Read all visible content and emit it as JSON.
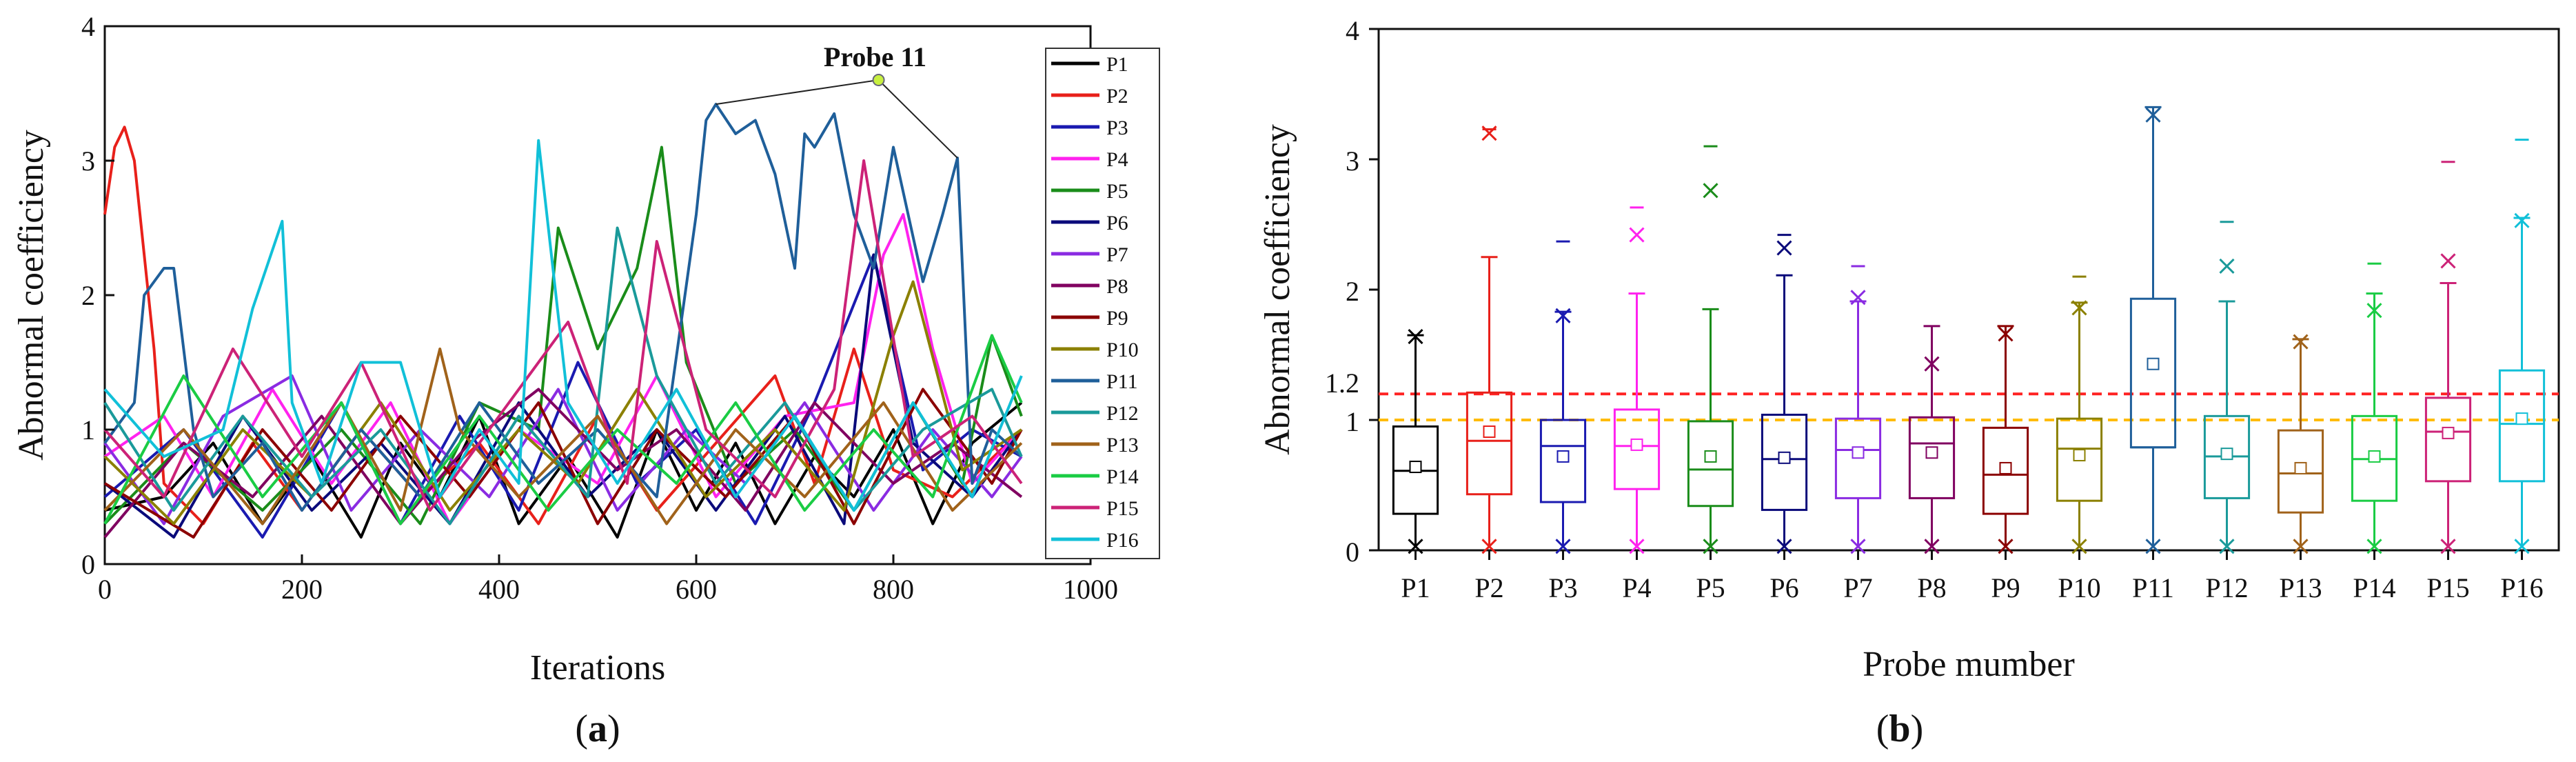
{
  "chart_data": [
    {
      "type": "line",
      "panel_label": "(a)",
      "xlabel": "Iterations",
      "ylabel": "Abnormal coefficiency",
      "xlim": [
        0,
        1000
      ],
      "ylim": [
        0,
        4
      ],
      "xticks": [
        "0",
        "200",
        "400",
        "600",
        "800",
        "1000"
      ],
      "yticks": [
        "0",
        "1",
        "2",
        "3",
        "4"
      ],
      "annotation": {
        "text": "Probe 11",
        "x": 785,
        "y": 3.6,
        "targets": [
          [
            620,
            3.42
          ],
          [
            865,
            3.02
          ]
        ]
      },
      "series": [
        {
          "name": "P1",
          "color": "#000000",
          "x": [
            0,
            60,
            110,
            160,
            210,
            260,
            300,
            340,
            380,
            420,
            470,
            520,
            560,
            600,
            640,
            680,
            720,
            760,
            800,
            840,
            880,
            930
          ],
          "y": [
            0.4,
            0.5,
            0.9,
            0.3,
            0.8,
            0.2,
            0.9,
            0.5,
            1.1,
            0.3,
            0.8,
            0.2,
            1.0,
            0.4,
            0.9,
            0.3,
            0.8,
            0.5,
            1.0,
            0.3,
            0.9,
            1.2
          ]
        },
        {
          "name": "P2",
          "color": "#e8201a",
          "x": [
            0,
            10,
            20,
            30,
            40,
            50,
            60,
            100,
            150,
            200,
            260,
            320,
            380,
            440,
            500,
            560,
            620,
            680,
            720,
            760,
            800,
            860,
            930
          ],
          "y": [
            2.6,
            3.1,
            3.25,
            3.0,
            2.3,
            1.6,
            0.6,
            0.3,
            0.9,
            0.4,
            1.0,
            0.5,
            0.9,
            0.3,
            1.1,
            0.4,
            0.9,
            1.4,
            0.6,
            1.6,
            0.7,
            0.5,
            1.0
          ]
        },
        {
          "name": "P3",
          "color": "#1a1ab0",
          "x": [
            0,
            80,
            160,
            240,
            300,
            360,
            420,
            480,
            540,
            600,
            660,
            720,
            780,
            830,
            880,
            930
          ],
          "y": [
            0.5,
            1.0,
            0.2,
            1.2,
            0.3,
            1.1,
            0.4,
            1.5,
            0.6,
            1.0,
            0.3,
            1.2,
            2.3,
            0.7,
            1.0,
            0.8
          ]
        },
        {
          "name": "P4",
          "color": "#ff22ee",
          "x": [
            0,
            60,
            110,
            170,
            230,
            290,
            350,
            420,
            500,
            560,
            620,
            690,
            760,
            790,
            810,
            840,
            880,
            930
          ],
          "y": [
            0.8,
            1.1,
            0.5,
            1.3,
            0.6,
            1.2,
            0.3,
            1.0,
            0.6,
            1.4,
            0.5,
            1.1,
            1.2,
            2.3,
            2.6,
            1.6,
            0.6,
            1.0
          ]
        },
        {
          "name": "P5",
          "color": "#1a8c1a",
          "x": [
            0,
            80,
            160,
            240,
            320,
            380,
            440,
            460,
            500,
            540,
            565,
            590,
            640,
            700,
            760,
            820,
            870,
            900,
            930
          ],
          "y": [
            0.3,
            0.9,
            0.4,
            1.0,
            0.3,
            1.2,
            1.0,
            2.5,
            1.6,
            2.2,
            3.1,
            1.5,
            0.6,
            1.0,
            0.4,
            1.2,
            0.6,
            1.7,
            1.1
          ]
        },
        {
          "name": "P6",
          "color": "#0a0a7a",
          "x": [
            0,
            70,
            140,
            210,
            280,
            350,
            420,
            490,
            560,
            620,
            690,
            750,
            780,
            820,
            880,
            930
          ],
          "y": [
            0.6,
            0.2,
            1.1,
            0.4,
            0.9,
            0.3,
            1.2,
            0.5,
            1.0,
            0.4,
            1.1,
            0.3,
            2.3,
            0.9,
            0.5,
            1.0
          ]
        },
        {
          "name": "P7",
          "color": "#8a2be2",
          "x": [
            0,
            60,
            120,
            190,
            250,
            320,
            390,
            460,
            520,
            590,
            650,
            710,
            780,
            840,
            900,
            930
          ],
          "y": [
            0.9,
            0.3,
            1.1,
            1.4,
            0.4,
            1.0,
            0.5,
            1.3,
            0.4,
            1.0,
            0.6,
            1.2,
            0.4,
            1.0,
            0.5,
            0.8
          ]
        },
        {
          "name": "P8",
          "color": "#800060",
          "x": [
            0,
            80,
            150,
            220,
            300,
            370,
            440,
            520,
            580,
            650,
            720,
            800,
            860,
            930
          ],
          "y": [
            0.2,
            0.9,
            0.5,
            1.1,
            0.3,
            0.9,
            1.3,
            0.7,
            1.0,
            0.4,
            1.2,
            0.6,
            0.9,
            0.5
          ]
        },
        {
          "name": "P9",
          "color": "#8b0000",
          "x": [
            0,
            90,
            160,
            230,
            300,
            370,
            440,
            500,
            560,
            630,
            700,
            760,
            830,
            900,
            930
          ],
          "y": [
            0.6,
            0.2,
            1.0,
            0.4,
            1.1,
            0.5,
            1.2,
            0.3,
            1.0,
            0.5,
            1.1,
            0.3,
            1.3,
            0.6,
            1.0
          ]
        },
        {
          "name": "P10",
          "color": "#8b8000",
          "x": [
            0,
            70,
            140,
            210,
            280,
            350,
            420,
            480,
            540,
            610,
            680,
            750,
            800,
            820,
            870,
            930
          ],
          "y": [
            0.8,
            0.3,
            1.0,
            0.5,
            1.2,
            0.4,
            1.0,
            0.6,
            1.3,
            0.5,
            1.0,
            0.4,
            1.7,
            2.1,
            0.7,
            1.0
          ]
        },
        {
          "name": "P11",
          "color": "#1f5f9a",
          "x": [
            0,
            30,
            40,
            60,
            70,
            90,
            110,
            160,
            200,
            260,
            320,
            380,
            440,
            500,
            560,
            600,
            610,
            620,
            640,
            660,
            680,
            700,
            710,
            720,
            740,
            760,
            780,
            800,
            830,
            850,
            865,
            880,
            900,
            930
          ],
          "y": [
            0.9,
            1.2,
            2.0,
            2.2,
            2.2,
            1.0,
            0.5,
            0.9,
            0.4,
            1.0,
            0.5,
            1.2,
            0.6,
            1.0,
            0.5,
            2.6,
            3.3,
            3.42,
            3.2,
            3.3,
            2.9,
            2.2,
            3.2,
            3.1,
            3.35,
            2.6,
            2.2,
            3.1,
            2.1,
            2.6,
            3.02,
            0.6,
            1.0,
            0.8
          ]
        },
        {
          "name": "P12",
          "color": "#1a9a9a",
          "x": [
            0,
            70,
            140,
            210,
            280,
            350,
            420,
            490,
            520,
            560,
            620,
            690,
            760,
            830,
            900,
            930
          ],
          "y": [
            1.2,
            0.4,
            1.1,
            0.5,
            1.0,
            0.3,
            1.1,
            0.5,
            2.5,
            1.4,
            0.6,
            1.2,
            0.4,
            1.0,
            1.3,
            0.8
          ]
        },
        {
          "name": "P13",
          "color": "#a0621a",
          "x": [
            0,
            80,
            160,
            240,
            300,
            340,
            360,
            420,
            500,
            570,
            640,
            710,
            790,
            860,
            930
          ],
          "y": [
            0.4,
            1.0,
            0.3,
            1.2,
            0.4,
            1.6,
            1.0,
            0.5,
            1.1,
            0.3,
            1.0,
            0.5,
            1.2,
            0.4,
            0.9
          ]
        },
        {
          "name": "P14",
          "color": "#1acc44",
          "x": [
            0,
            80,
            160,
            240,
            300,
            380,
            450,
            520,
            580,
            640,
            710,
            780,
            840,
            900,
            930
          ],
          "y": [
            0.3,
            1.4,
            0.5,
            1.2,
            0.3,
            1.1,
            0.4,
            1.0,
            0.6,
            1.2,
            0.4,
            1.0,
            0.5,
            1.7,
            1.2
          ]
        },
        {
          "name": "P15",
          "color": "#cc2277",
          "x": [
            0,
            60,
            130,
            200,
            260,
            330,
            400,
            470,
            530,
            560,
            610,
            680,
            740,
            770,
            820,
            880,
            930
          ],
          "y": [
            1.0,
            0.5,
            1.6,
            0.8,
            1.5,
            0.4,
            1.1,
            1.8,
            0.6,
            2.4,
            1.0,
            0.5,
            1.3,
            3.0,
            0.8,
            1.1,
            0.6
          ]
        },
        {
          "name": "P16",
          "color": "#11c0d8",
          "x": [
            0,
            60,
            120,
            150,
            180,
            190,
            220,
            260,
            300,
            340,
            380,
            420,
            440,
            470,
            520,
            580,
            640,
            700,
            760,
            820,
            880,
            930
          ],
          "y": [
            1.3,
            0.8,
            1.0,
            1.9,
            2.55,
            1.2,
            0.6,
            1.5,
            1.5,
            0.5,
            1.0,
            0.6,
            3.15,
            1.2,
            0.6,
            1.3,
            0.5,
            1.1,
            0.4,
            1.2,
            0.5,
            1.4
          ]
        }
      ]
    },
    {
      "type": "box",
      "panel_label": "(b)",
      "xlabel": "Probe mumber",
      "ylabel": "Abnormal coefficiency",
      "ylim": [
        0,
        4
      ],
      "yticks": [
        "0",
        "1",
        "2",
        "3",
        "4"
      ],
      "reference_lines": [
        {
          "value": 1.2,
          "color": "#ff2222",
          "label": "1.2"
        },
        {
          "value": 1.0,
          "color": "#ffbb00",
          "label": ""
        }
      ],
      "boxes": [
        {
          "name": "P1",
          "color": "#000000",
          "min": 0.03,
          "q1": 0.28,
          "median": 0.61,
          "q3": 0.95,
          "max": 1.65,
          "mean": 0.64,
          "outliers_x": [
            1.64,
            0.03
          ],
          "outliers_dash": []
        },
        {
          "name": "P2",
          "color": "#e8201a",
          "min": 0.03,
          "q1": 0.43,
          "median": 0.84,
          "q3": 1.21,
          "max": 2.25,
          "mean": 0.91,
          "outliers_x": [
            3.2,
            0.03
          ],
          "outliers_dash": [
            3.23
          ]
        },
        {
          "name": "P3",
          "color": "#1a1ab0",
          "min": 0.03,
          "q1": 0.37,
          "median": 0.8,
          "q3": 1.0,
          "max": 1.83,
          "mean": 0.72,
          "outliers_x": [
            1.8,
            0.03
          ],
          "outliers_dash": [
            2.37
          ]
        },
        {
          "name": "P4",
          "color": "#ff22ee",
          "min": 0.03,
          "q1": 0.47,
          "median": 0.8,
          "q3": 1.08,
          "max": 1.97,
          "mean": 0.81,
          "outliers_x": [
            2.42,
            0.03
          ],
          "outliers_dash": [
            2.63
          ]
        },
        {
          "name": "P5",
          "color": "#1a8c1a",
          "min": 0.03,
          "q1": 0.34,
          "median": 0.62,
          "q3": 0.99,
          "max": 1.85,
          "mean": 0.72,
          "outliers_x": [
            2.76,
            0.03
          ],
          "outliers_dash": [
            3.1
          ]
        },
        {
          "name": "P6",
          "color": "#0a0a7a",
          "min": 0.03,
          "q1": 0.31,
          "median": 0.7,
          "q3": 1.04,
          "max": 2.11,
          "mean": 0.71,
          "outliers_x": [
            2.32,
            0.03
          ],
          "outliers_dash": [
            2.42
          ]
        },
        {
          "name": "P7",
          "color": "#8a2be2",
          "min": 0.03,
          "q1": 0.4,
          "median": 0.77,
          "q3": 1.01,
          "max": 1.91,
          "mean": 0.75,
          "outliers_x": [
            1.94,
            0.03
          ],
          "outliers_dash": [
            2.18
          ]
        },
        {
          "name": "P8",
          "color": "#800060",
          "min": 0.03,
          "q1": 0.4,
          "median": 0.82,
          "q3": 1.02,
          "max": 1.72,
          "mean": 0.75,
          "outliers_x": [
            1.43,
            0.03
          ],
          "outliers_dash": []
        },
        {
          "name": "P9",
          "color": "#8b0000",
          "min": 0.03,
          "q1": 0.28,
          "median": 0.58,
          "q3": 0.94,
          "max": 1.72,
          "mean": 0.63,
          "outliers_x": [
            1.66,
            0.03
          ],
          "outliers_dash": []
        },
        {
          "name": "P10",
          "color": "#8b8000",
          "min": 0.03,
          "q1": 0.38,
          "median": 0.78,
          "q3": 1.01,
          "max": 1.9,
          "mean": 0.73,
          "outliers_x": [
            1.86,
            0.03
          ],
          "outliers_dash": [
            2.1
          ]
        },
        {
          "name": "P11",
          "color": "#1f5f9a",
          "min": 0.03,
          "q1": 0.79,
          "median": 0.79,
          "q3": 1.93,
          "max": 3.4,
          "mean": 1.43,
          "outliers_x": [
            3.34,
            0.03
          ],
          "outliers_dash": []
        },
        {
          "name": "P12",
          "color": "#1a9a9a",
          "min": 0.03,
          "q1": 0.4,
          "median": 0.72,
          "q3": 1.03,
          "max": 1.91,
          "mean": 0.74,
          "outliers_x": [
            2.18,
            0.03
          ],
          "outliers_dash": [
            2.52
          ]
        },
        {
          "name": "P13",
          "color": "#a0621a",
          "min": 0.03,
          "q1": 0.29,
          "median": 0.59,
          "q3": 0.92,
          "max": 1.62,
          "mean": 0.63,
          "outliers_x": [
            1.6,
            0.03
          ],
          "outliers_dash": []
        },
        {
          "name": "P14",
          "color": "#1acc44",
          "min": 0.03,
          "q1": 0.38,
          "median": 0.7,
          "q3": 1.03,
          "max": 1.97,
          "mean": 0.72,
          "outliers_x": [
            1.84,
            0.03
          ],
          "outliers_dash": [
            2.2
          ]
        },
        {
          "name": "P15",
          "color": "#cc2277",
          "min": 0.03,
          "q1": 0.53,
          "median": 0.91,
          "q3": 1.17,
          "max": 2.05,
          "mean": 0.9,
          "outliers_x": [
            2.22,
            0.03
          ],
          "outliers_dash": [
            2.98
          ]
        },
        {
          "name": "P16",
          "color": "#11c0d8",
          "min": 0.03,
          "q1": 0.53,
          "median": 0.97,
          "q3": 1.38,
          "max": 2.55,
          "mean": 1.01,
          "outliers_x": [
            2.53,
            0.03
          ],
          "outliers_dash": [
            3.15
          ]
        }
      ]
    }
  ]
}
